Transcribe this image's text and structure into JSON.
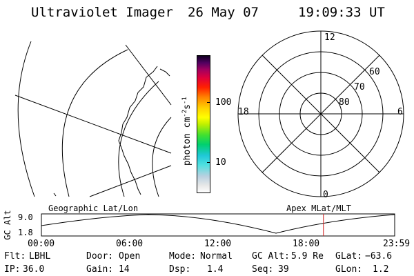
{
  "header": {
    "instrument": "Ultraviolet Imager",
    "date": "26 May 07",
    "time": "19:09:33 UT"
  },
  "colorbar": {
    "unit": "photon cm-2s-1",
    "tick_100": "100",
    "tick_10": "10"
  },
  "polar_labels": {
    "h12": "12",
    "h18": "18",
    "h6": "6",
    "h0": "0",
    "lat60": "60",
    "lat70": "70",
    "lat80": "80"
  },
  "panels": {
    "left_title": "Geographic Lat/Lon",
    "right_title": "Apex MLat/MLT"
  },
  "altitude_plot": {
    "axis_label": "GC Alt",
    "ymax": "9.0",
    "ymin": "1.8",
    "x_ticks": [
      "00:00",
      "06:00",
      "12:00",
      "18:00",
      "23:59"
    ],
    "current_time_hours": 19.16
  },
  "status": {
    "row1": {
      "flt_label": "Flt:",
      "flt": "LBHL",
      "door_label": "Door:",
      "door": "Open",
      "mode_label": "Mode:",
      "mode": "Normal",
      "gcalt_label": "GC Alt:",
      "gcalt": "5.9 Re",
      "glat_label": "GLat:",
      "glat": "−63.6"
    },
    "row2": {
      "ip_label": "IP:",
      "ip": "36.0",
      "gain_label": "Gain:",
      "gain": "14",
      "dsp_label": "Dsp:",
      "dsp": "1.4",
      "seq_label": "Seq:",
      "seq": "39",
      "glon_label": "GLon:",
      "glon": "1.2"
    }
  },
  "colors": {
    "foreground": "#000000",
    "time_marker": "#d02020",
    "background": "#ffffff"
  }
}
